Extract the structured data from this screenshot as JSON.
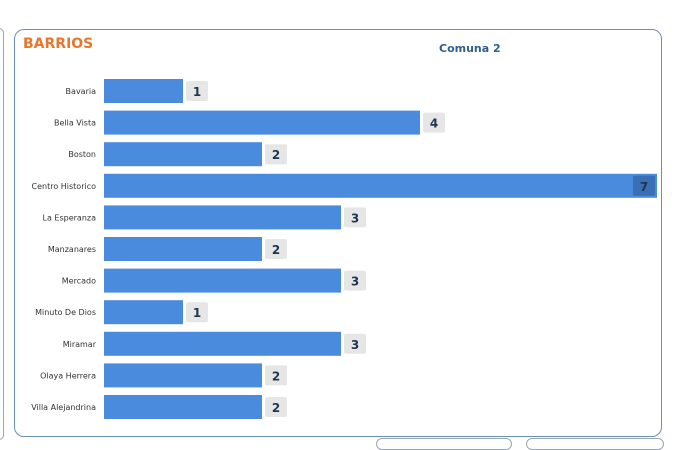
{
  "panel": {
    "title": "BARRIOS",
    "subtitle": "Comuna 2"
  },
  "colors": {
    "bar": "#4a8bdd",
    "label_bg": "#e6e6e6",
    "label_bg_inside": "#3a6fb5",
    "title": "#e8772e"
  },
  "chart_data": {
    "type": "bar",
    "orientation": "horizontal",
    "categories": [
      "Bavaria",
      "Bella Vista",
      "Boston",
      "Centro Historico",
      "La Esperanza",
      "Manzanares",
      "Mercado",
      "Minuto De Dios",
      "Miramar",
      "Olaya Herrera",
      "Villa Alejandrina"
    ],
    "values": [
      1,
      4,
      2,
      7,
      3,
      2,
      3,
      1,
      3,
      2,
      2
    ],
    "title": "Comuna 2",
    "xlim": [
      0,
      7
    ],
    "grid": false,
    "legend": "none"
  }
}
